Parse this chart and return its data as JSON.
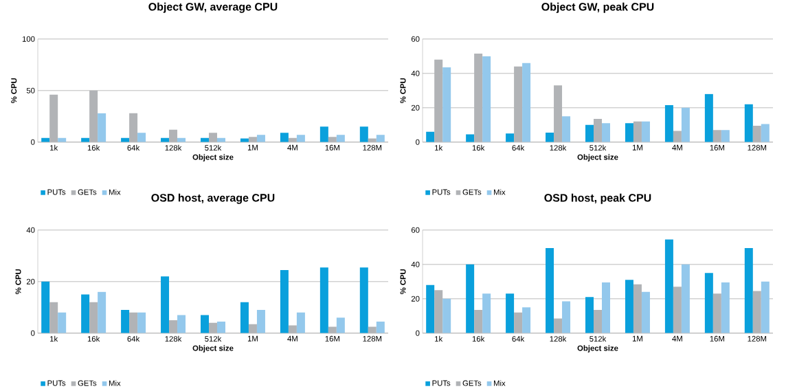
{
  "chart_data": [
    {
      "type": "bar",
      "title": "Object GW, average CPU",
      "xlabel": "Object size",
      "ylabel": "% CPU",
      "categories": [
        "1k",
        "16k",
        "64k",
        "128k",
        "512k",
        "1M",
        "4M",
        "16M",
        "128M"
      ],
      "ylim": [
        0,
        100
      ],
      "yticks": [
        0,
        50,
        100
      ],
      "grid": "y",
      "legend": "bottom left",
      "series": [
        {
          "name": "PUTs",
          "color": "#0aa0dc",
          "values": [
            4,
            4,
            4,
            4,
            4,
            3.5,
            9,
            15,
            15
          ]
        },
        {
          "name": "GETs",
          "color": "#b1b3b6",
          "values": [
            46,
            50,
            28,
            12,
            9,
            5,
            4,
            5,
            3.5
          ]
        },
        {
          "name": "Mix",
          "color": "#93c8ec",
          "values": [
            4,
            28,
            9,
            4,
            4,
            7,
            7,
            7,
            7
          ]
        }
      ]
    },
    {
      "type": "bar",
      "title": "Object GW, peak CPU",
      "xlabel": "Object size",
      "ylabel": "% CPU",
      "categories": [
        "1k",
        "16k",
        "64k",
        "128k",
        "512k",
        "1M",
        "4M",
        "16M",
        "128M"
      ],
      "ylim": [
        0,
        60
      ],
      "yticks": [
        0,
        20,
        40,
        60
      ],
      "grid": "y",
      "legend": "bottom left",
      "series": [
        {
          "name": "PUTs",
          "color": "#0aa0dc",
          "values": [
            6,
            4.5,
            5,
            5.5,
            10,
            11,
            21.5,
            28,
            22
          ]
        },
        {
          "name": "GETs",
          "color": "#b1b3b6",
          "values": [
            48,
            51.5,
            44,
            33,
            13.5,
            12,
            6.5,
            7,
            9.5
          ]
        },
        {
          "name": "Mix",
          "color": "#93c8ec",
          "values": [
            43.5,
            50,
            46,
            15,
            11,
            12,
            20,
            7,
            10.5
          ]
        }
      ]
    },
    {
      "type": "bar",
      "title": "OSD host, average CPU",
      "xlabel": "Object size",
      "ylabel": "% CPU",
      "categories": [
        "1k",
        "16k",
        "64k",
        "128k",
        "512k",
        "1M",
        "4M",
        "16M",
        "128M"
      ],
      "ylim": [
        0,
        40
      ],
      "yticks": [
        0,
        20,
        40
      ],
      "grid": "y",
      "legend": "bottom left",
      "series": [
        {
          "name": "PUTs",
          "color": "#0aa0dc",
          "values": [
            20,
            15,
            9,
            22,
            7,
            12,
            24.5,
            25.5,
            25.5
          ]
        },
        {
          "name": "GETs",
          "color": "#b1b3b6",
          "values": [
            12,
            12,
            8,
            5,
            4,
            3.5,
            3,
            2.5,
            2.5
          ]
        },
        {
          "name": "Mix",
          "color": "#93c8ec",
          "values": [
            8,
            16,
            8,
            7,
            4.5,
            9,
            8,
            6,
            4.5
          ]
        }
      ]
    },
    {
      "type": "bar",
      "title": "OSD host, peak CPU",
      "xlabel": "Object size",
      "ylabel": "% CPU",
      "categories": [
        "1k",
        "16k",
        "64k",
        "128k",
        "512k",
        "1M",
        "4M",
        "16M",
        "128M"
      ],
      "ylim": [
        0,
        60
      ],
      "yticks": [
        0,
        20,
        40,
        60
      ],
      "grid": "y",
      "legend": "bottom left",
      "series": [
        {
          "name": "PUTs",
          "color": "#0aa0dc",
          "values": [
            28,
            40,
            23,
            49.5,
            21,
            31,
            54.5,
            35,
            49.5
          ]
        },
        {
          "name": "GETs",
          "color": "#b1b3b6",
          "values": [
            25,
            13.5,
            12,
            8.5,
            13.5,
            28.5,
            27,
            23,
            24.5
          ]
        },
        {
          "name": "Mix",
          "color": "#93c8ec",
          "values": [
            20,
            23,
            15,
            18.5,
            29.5,
            24,
            40,
            29.5,
            30
          ]
        }
      ]
    }
  ]
}
